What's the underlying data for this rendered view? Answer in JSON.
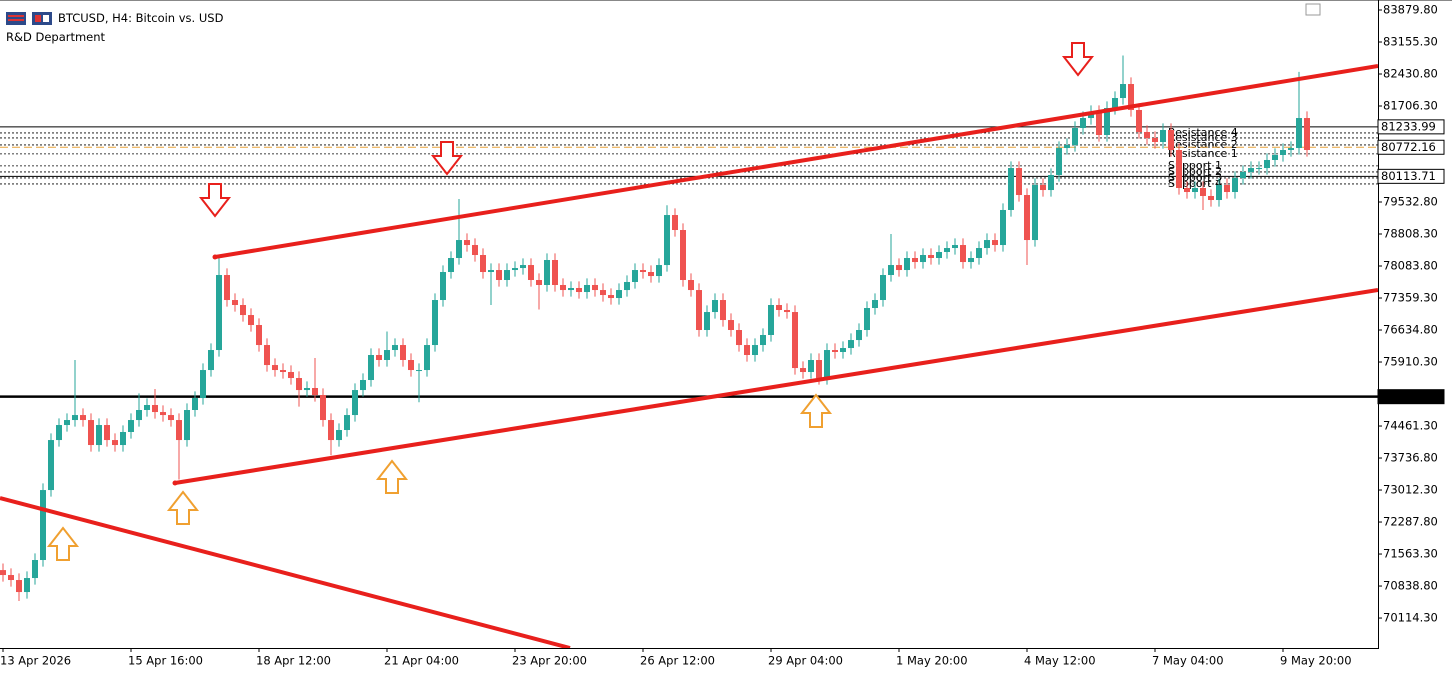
{
  "chart_data": {
    "type": "candlestick",
    "title": "BTCUSD, H4:  Bitcoin vs. USD",
    "subtitle": "R&D Department",
    "up_color": "#26a69a",
    "down_color": "#ef5350",
    "ylim": [
      69436,
      84106
    ],
    "yticks": [
      {
        "value": 83879.8,
        "label": "83879.80"
      },
      {
        "value": 83155.3,
        "label": "83155.30"
      },
      {
        "value": 82430.8,
        "label": "82430.80"
      },
      {
        "value": 81706.3,
        "label": "81706.30"
      },
      {
        "value": 79532.8,
        "label": "79532.80"
      },
      {
        "value": 78808.3,
        "label": "78808.30"
      },
      {
        "value": 78083.8,
        "label": "78083.80"
      },
      {
        "value": 77359.3,
        "label": "77359.30"
      },
      {
        "value": 76634.8,
        "label": "76634.80"
      },
      {
        "value": 75910.3,
        "label": "75910.30"
      },
      {
        "value": 74461.3,
        "label": "74461.30"
      },
      {
        "value": 73736.8,
        "label": "73736.80"
      },
      {
        "value": 73012.3,
        "label": "73012.30"
      },
      {
        "value": 72287.8,
        "label": "72287.80"
      },
      {
        "value": 71563.3,
        "label": "71563.30"
      },
      {
        "value": 70838.8,
        "label": "70838.80"
      },
      {
        "value": 70114.3,
        "label": "70114.30"
      }
    ],
    "categories": [
      "13 Apr 2026",
      null,
      null,
      null,
      null,
      null,
      null,
      null,
      null,
      null,
      null,
      null,
      null,
      null,
      null,
      null,
      "15 Apr 16:00",
      null,
      null,
      null,
      null,
      null,
      null,
      null,
      null,
      null,
      null,
      null,
      null,
      null,
      null,
      null,
      "18 Apr 12:00",
      null,
      null,
      null,
      null,
      null,
      null,
      null,
      null,
      null,
      null,
      null,
      null,
      null,
      null,
      null,
      "21 Apr 04:00",
      null,
      null,
      null,
      null,
      null,
      null,
      null,
      null,
      null,
      null,
      null,
      null,
      null,
      null,
      null,
      "23 Apr 20:00",
      null,
      null,
      null,
      null,
      null,
      null,
      null,
      null,
      null,
      null,
      null,
      null,
      null,
      null,
      null,
      "26 Apr 12:00",
      null,
      null,
      null,
      null,
      null,
      null,
      null,
      null,
      null,
      null,
      null,
      null,
      null,
      null,
      null,
      "29 Apr 04:00",
      null,
      null,
      null,
      null,
      null,
      null,
      null,
      null,
      null,
      null,
      null,
      null,
      null,
      null,
      null,
      "1 May 20:00",
      null,
      null,
      null,
      null,
      null,
      null,
      null,
      null,
      null,
      null,
      null,
      null,
      null,
      null,
      null,
      "4 May 12:00",
      null,
      null,
      null,
      null,
      null,
      null,
      null,
      null,
      null,
      null,
      null,
      null,
      null,
      null,
      null,
      "7 May 04:00",
      null,
      null,
      null,
      null,
      null,
      null,
      null,
      null,
      null,
      null,
      null,
      null,
      null,
      null,
      null,
      "9 May 20:00",
      null,
      null,
      null
    ],
    "open": [
      71200,
      71088,
      70975,
      70703,
      71020,
      71428,
      73012,
      74144,
      74484,
      74597,
      74710,
      74597,
      74031,
      74484,
      74144,
      74031,
      74326,
      74597,
      74824,
      74937,
      74778,
      74710,
      74597,
      74144,
      74824,
      75095,
      75729,
      76182,
      77880,
      77314,
      77201,
      76974,
      76748,
      76295,
      75842,
      75729,
      75684,
      75548,
      75276,
      75322,
      75163,
      74597,
      74144,
      74371,
      74710,
      75276,
      75503,
      76069,
      75956,
      76182,
      76295,
      75956,
      75729,
      75729,
      76295,
      77314,
      77948,
      78265,
      78672,
      78559,
      78333,
      77948,
      77993,
      77767,
      77993,
      78038,
      78106,
      77767,
      77654,
      78220,
      77654,
      77540,
      77586,
      77495,
      77654,
      77540,
      77427,
      77359,
      77540,
      77722,
      77993,
      77948,
      77857,
      78106,
      79238,
      78899,
      77767,
      77540,
      76635,
      77042,
      77314,
      76861,
      76635,
      76295,
      76069,
      76295,
      76522,
      77201,
      77088,
      77042,
      75774,
      75684,
      75956,
      75548,
      76182,
      76137,
      76227,
      76408,
      76635,
      77133,
      77314,
      77880,
      78106,
      77993,
      78265,
      78174,
      78333,
      78265,
      78401,
      78491,
      78559,
      78174,
      78265,
      78491,
      78672,
      78559,
      79352,
      80302,
      79691,
      78672,
      79918,
      79804,
      80144,
      80755,
      80823,
      81208,
      81434,
      81570,
      81050,
      81661,
      81887,
      82204,
      81616,
      81118,
      80982,
      80891,
      81163,
      80710,
      79850,
      79759,
      79850,
      79669,
      79578,
      79918,
      79759,
      80076,
      80212,
      80302,
      80302,
      80484,
      80597,
      80710,
      80755,
      81434
    ],
    "high": [
      71350,
      71238,
      71125,
      71170,
      71578,
      73162,
      74294,
      74634,
      74747,
      75956,
      74860,
      74747,
      74634,
      74634,
      74294,
      74476,
      74747,
      75200,
      75087,
      75300,
      74928,
      74860,
      74747,
      74974,
      75245,
      75879,
      76332,
      78330,
      78030,
      77464,
      77351,
      77124,
      76898,
      76445,
      75992,
      75879,
      75834,
      75698,
      75472,
      76000,
      75313,
      74747,
      74521,
      74860,
      75426,
      75653,
      76219,
      76219,
      76600,
      76445,
      76445,
      76106,
      75879,
      76445,
      77464,
      78098,
      78415,
      79600,
      78822,
      78709,
      78483,
      78143,
      78143,
      78143,
      78188,
      78256,
      78256,
      77917,
      78370,
      78370,
      77804,
      77736,
      77736,
      77804,
      77804,
      77690,
      77577,
      77690,
      77872,
      78143,
      78143,
      78098,
      78256,
      79460,
      79388,
      79049,
      77917,
      77690,
      77192,
      77464,
      77464,
      77011,
      76785,
      76445,
      76445,
      76672,
      77351,
      77351,
      77238,
      77192,
      75924,
      76106,
      76106,
      76332,
      76332,
      76377,
      76558,
      76785,
      77283,
      77464,
      78030,
      78808,
      78256,
      78415,
      78415,
      78483,
      78483,
      78551,
      78641,
      78709,
      78709,
      78415,
      78641,
      78822,
      78822,
      79502,
      80452,
      80452,
      79841,
      80068,
      80068,
      80294,
      80905,
      80973,
      81358,
      81584,
      81720,
      81720,
      81811,
      82037,
      82850,
      82354,
      81766,
      81268,
      81132,
      81313,
      81313,
      80860,
      80000,
      80000,
      80000,
      79819,
      80068,
      80068,
      80226,
      80362,
      80452,
      80452,
      80634,
      80747,
      80860,
      80905,
      82480,
      81584
    ],
    "low": [
      70938,
      70825,
      70500,
      70553,
      70870,
      71278,
      72862,
      73994,
      74334,
      74447,
      74447,
      73881,
      73881,
      73994,
      73881,
      73881,
      74176,
      74447,
      74674,
      74628,
      74560,
      74447,
      73250,
      73994,
      74674,
      74945,
      75579,
      76032,
      77164,
      77051,
      76824,
      76598,
      76145,
      75692,
      75579,
      75534,
      75398,
      74900,
      75126,
      75013,
      74447,
      73800,
      73994,
      74221,
      74560,
      75126,
      75353,
      75806,
      75806,
      76032,
      75806,
      75579,
      75000,
      75579,
      76145,
      77164,
      77798,
      78115,
      78409,
      78183,
      77798,
      77200,
      77617,
      77617,
      77843,
      77888,
      77617,
      77100,
      77504,
      77504,
      77390,
      77390,
      77345,
      77345,
      77390,
      77277,
      77209,
      77209,
      77390,
      77572,
      77798,
      77707,
      77707,
      77956,
      78749,
      77617,
      77390,
      76485,
      76485,
      76892,
      76711,
      76485,
      76145,
      75919,
      75919,
      76145,
      76372,
      76938,
      76892,
      75624,
      75534,
      75534,
      75398,
      75398,
      75987,
      75987,
      76077,
      76258,
      76485,
      76983,
      77164,
      77730,
      77843,
      77843,
      78024,
      78024,
      78115,
      78115,
      78251,
      78341,
      78024,
      78024,
      78115,
      78341,
      78409,
      78409,
      79202,
      79541,
      78106,
      78522,
      79654,
      79654,
      79994,
      80605,
      80673,
      81058,
      81284,
      80900,
      80900,
      81511,
      81737,
      81466,
      80968,
      80832,
      80741,
      80741,
      80560,
      79700,
      79609,
      79609,
      79352,
      79428,
      79428,
      79609,
      79609,
      79926,
      80062,
      80152,
      80152,
      80334,
      80447,
      80560,
      80605,
      80560
    ],
    "close": [
      71088,
      70975,
      70703,
      71020,
      71428,
      73012,
      74144,
      74484,
      74597,
      74710,
      74597,
      74031,
      74484,
      74144,
      74031,
      74326,
      74597,
      74824,
      74937,
      74778,
      74710,
      74597,
      74144,
      74824,
      75095,
      75729,
      76182,
      77880,
      77314,
      77201,
      76974,
      76748,
      76295,
      75842,
      75729,
      75684,
      75548,
      75276,
      75322,
      75163,
      74597,
      74144,
      74371,
      74710,
      75276,
      75503,
      76069,
      75956,
      76182,
      76295,
      75956,
      75729,
      75729,
      76295,
      77314,
      77948,
      78265,
      78672,
      78559,
      78333,
      77948,
      77993,
      77767,
      77993,
      78038,
      78106,
      77767,
      77654,
      78220,
      77654,
      77540,
      77586,
      77495,
      77654,
      77540,
      77427,
      77359,
      77540,
      77722,
      77993,
      77948,
      77857,
      78106,
      79238,
      78899,
      77767,
      77540,
      76635,
      77042,
      77314,
      76861,
      76635,
      76295,
      76069,
      76295,
      76522,
      77201,
      77088,
      77042,
      75774,
      75684,
      75956,
      75548,
      76182,
      76137,
      76227,
      76408,
      76635,
      77133,
      77314,
      77880,
      78106,
      77993,
      78265,
      78174,
      78333,
      78265,
      78401,
      78491,
      78559,
      78174,
      78265,
      78491,
      78672,
      78559,
      79352,
      80302,
      79691,
      78672,
      79918,
      79804,
      80144,
      80755,
      80823,
      81208,
      81434,
      81570,
      81050,
      81661,
      81887,
      82204,
      81616,
      81118,
      80982,
      80891,
      81163,
      80710,
      79850,
      79759,
      79850,
      79669,
      79578,
      79918,
      79759,
      80076,
      80212,
      80302,
      80302,
      80484,
      80597,
      80710,
      80755,
      81434,
      80710
    ],
    "levels": [
      {
        "name": "Resistance 4",
        "value": 81096
      },
      {
        "name": "Resistance 3",
        "value": 80983
      },
      {
        "name": "Resistance 2",
        "value": 80825
      },
      {
        "name": "Resistance 1",
        "value": 80622
      },
      {
        "name": "Support 1",
        "value": 80350
      },
      {
        "name": "Support 2",
        "value": 80214
      },
      {
        "name": "Support 3",
        "value": 80078
      },
      {
        "name": "Support 4",
        "value": 79942
      }
    ],
    "price_lines": [
      {
        "value": 81233.99,
        "color": "#000000",
        "width": 1,
        "dash": "none"
      },
      {
        "value": 80772.16,
        "color": "#e8a33c",
        "width": 1,
        "dash": "8 4"
      },
      {
        "value": 80113.71,
        "color": "#000000",
        "width": 1,
        "dash": "none"
      },
      {
        "value": 75125.44,
        "color": "#000000",
        "width": 2.5,
        "dash": "none"
      }
    ]
  }
}
